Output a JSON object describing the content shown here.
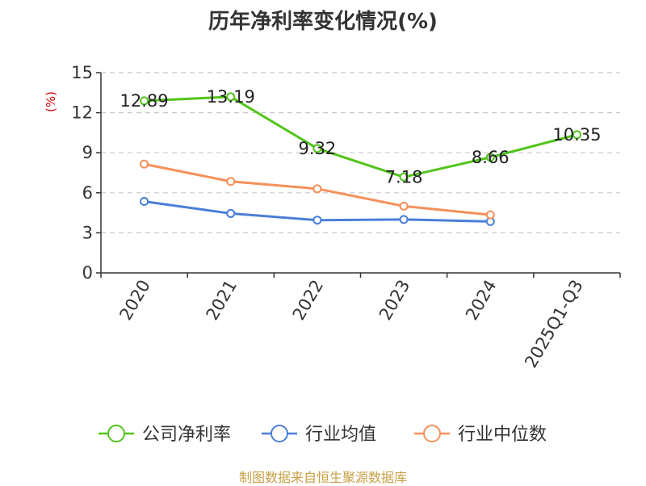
{
  "title": "历年净利率变化情况(%)",
  "source": "制图数据来自恒生聚源数据库",
  "chart_data": {
    "type": "line",
    "title": "历年净利率变化情况(%)",
    "ylabel": "(%)",
    "categories": [
      "2020",
      "2021",
      "2022",
      "2023",
      "2024",
      "2025Q1-Q3"
    ],
    "ylim": [
      0,
      15
    ],
    "yticks": [
      0,
      3,
      6,
      9,
      12,
      15
    ],
    "grid": true,
    "legend_position": "bottom",
    "series": [
      {
        "name": "公司净利率",
        "color": "#52c41a",
        "values": [
          12.89,
          13.19,
          9.32,
          7.18,
          8.66,
          10.35
        ],
        "labels": [
          "12.89",
          "13.19",
          "9.32",
          "7.18",
          "8.66",
          "10.35"
        ]
      },
      {
        "name": "行业均值",
        "color": "#4a7fd8",
        "values": [
          5.35,
          4.45,
          3.95,
          4.0,
          3.85,
          null
        ]
      },
      {
        "name": "行业中位数",
        "color": "#f5905a",
        "values": [
          8.15,
          6.85,
          6.3,
          5.0,
          4.35,
          null
        ]
      }
    ]
  }
}
